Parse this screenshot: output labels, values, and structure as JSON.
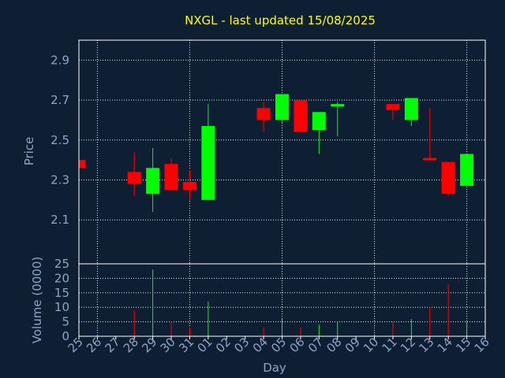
{
  "chart_data": {
    "type": "candlestick",
    "title": "NXGL - last updated 15/08/2025",
    "xlabel": "Day",
    "categories": [
      "25",
      "26",
      "27",
      "28",
      "29",
      "30",
      "31",
      "01",
      "02",
      "03",
      "04",
      "05",
      "06",
      "07",
      "08",
      "09",
      "10",
      "11",
      "12",
      "13",
      "14",
      "15",
      "16"
    ],
    "price_panel": {
      "ylabel": "Price",
      "ylim": [
        1.88,
        3.0
      ],
      "yticks": [
        "2.1",
        "2.3",
        "2.5",
        "2.7",
        "2.9"
      ],
      "ytick_values": [
        2.1,
        2.3,
        2.5,
        2.7,
        2.9
      ],
      "grid": true
    },
    "volume_panel": {
      "ylabel": "Volume (0000)",
      "ylim": [
        0,
        25
      ],
      "yticks": [
        "0",
        "5",
        "10",
        "15",
        "20",
        "25"
      ],
      "ytick_values": [
        0,
        5,
        10,
        15,
        20,
        25
      ],
      "grid": true
    },
    "colors": {
      "up": "#00ff00",
      "down": "#ff0000",
      "background": "#0f1f33",
      "title": "#ffff00",
      "axis_text": "#8da6c6"
    },
    "candles": [
      {
        "day": "25",
        "open": 2.4,
        "high": 2.4,
        "low": 2.36,
        "close": 2.36,
        "volume": 0
      },
      {
        "day": "28",
        "open": 2.34,
        "high": 2.44,
        "low": 2.22,
        "close": 2.28,
        "volume": 9
      },
      {
        "day": "29",
        "open": 2.23,
        "high": 2.46,
        "low": 2.14,
        "close": 2.36,
        "volume": 23
      },
      {
        "day": "30",
        "open": 2.38,
        "high": 2.41,
        "low": 2.25,
        "close": 2.25,
        "volume": 5
      },
      {
        "day": "31",
        "open": 2.29,
        "high": 2.35,
        "low": 2.2,
        "close": 2.25,
        "volume": 3
      },
      {
        "day": "01",
        "open": 2.2,
        "high": 2.68,
        "low": 2.2,
        "close": 2.57,
        "volume": 12
      },
      {
        "day": "04",
        "open": 2.66,
        "high": 2.69,
        "low": 2.54,
        "close": 2.6,
        "volume": 3
      },
      {
        "day": "05",
        "open": 2.6,
        "high": 2.73,
        "low": 2.58,
        "close": 2.73,
        "volume": 6
      },
      {
        "day": "06",
        "open": 2.7,
        "high": 2.7,
        "low": 2.54,
        "close": 2.54,
        "volume": 3
      },
      {
        "day": "07",
        "open": 2.55,
        "high": 2.64,
        "low": 2.43,
        "close": 2.64,
        "volume": 4
      },
      {
        "day": "08",
        "open": 2.67,
        "high": 2.69,
        "low": 2.52,
        "close": 2.68,
        "volume": 5
      },
      {
        "day": "11",
        "open": 2.68,
        "high": 2.68,
        "low": 2.6,
        "close": 2.65,
        "volume": 5
      },
      {
        "day": "12",
        "open": 2.6,
        "high": 2.71,
        "low": 2.57,
        "close": 2.71,
        "volume": 6
      },
      {
        "day": "13",
        "open": 2.41,
        "high": 2.66,
        "low": 2.4,
        "close": 2.4,
        "volume": 10
      },
      {
        "day": "14",
        "open": 2.39,
        "high": 2.39,
        "low": 2.22,
        "close": 2.23,
        "volume": 18
      },
      {
        "day": "15",
        "open": 2.27,
        "high": 2.43,
        "low": 2.27,
        "close": 2.43,
        "volume": 5
      }
    ]
  }
}
